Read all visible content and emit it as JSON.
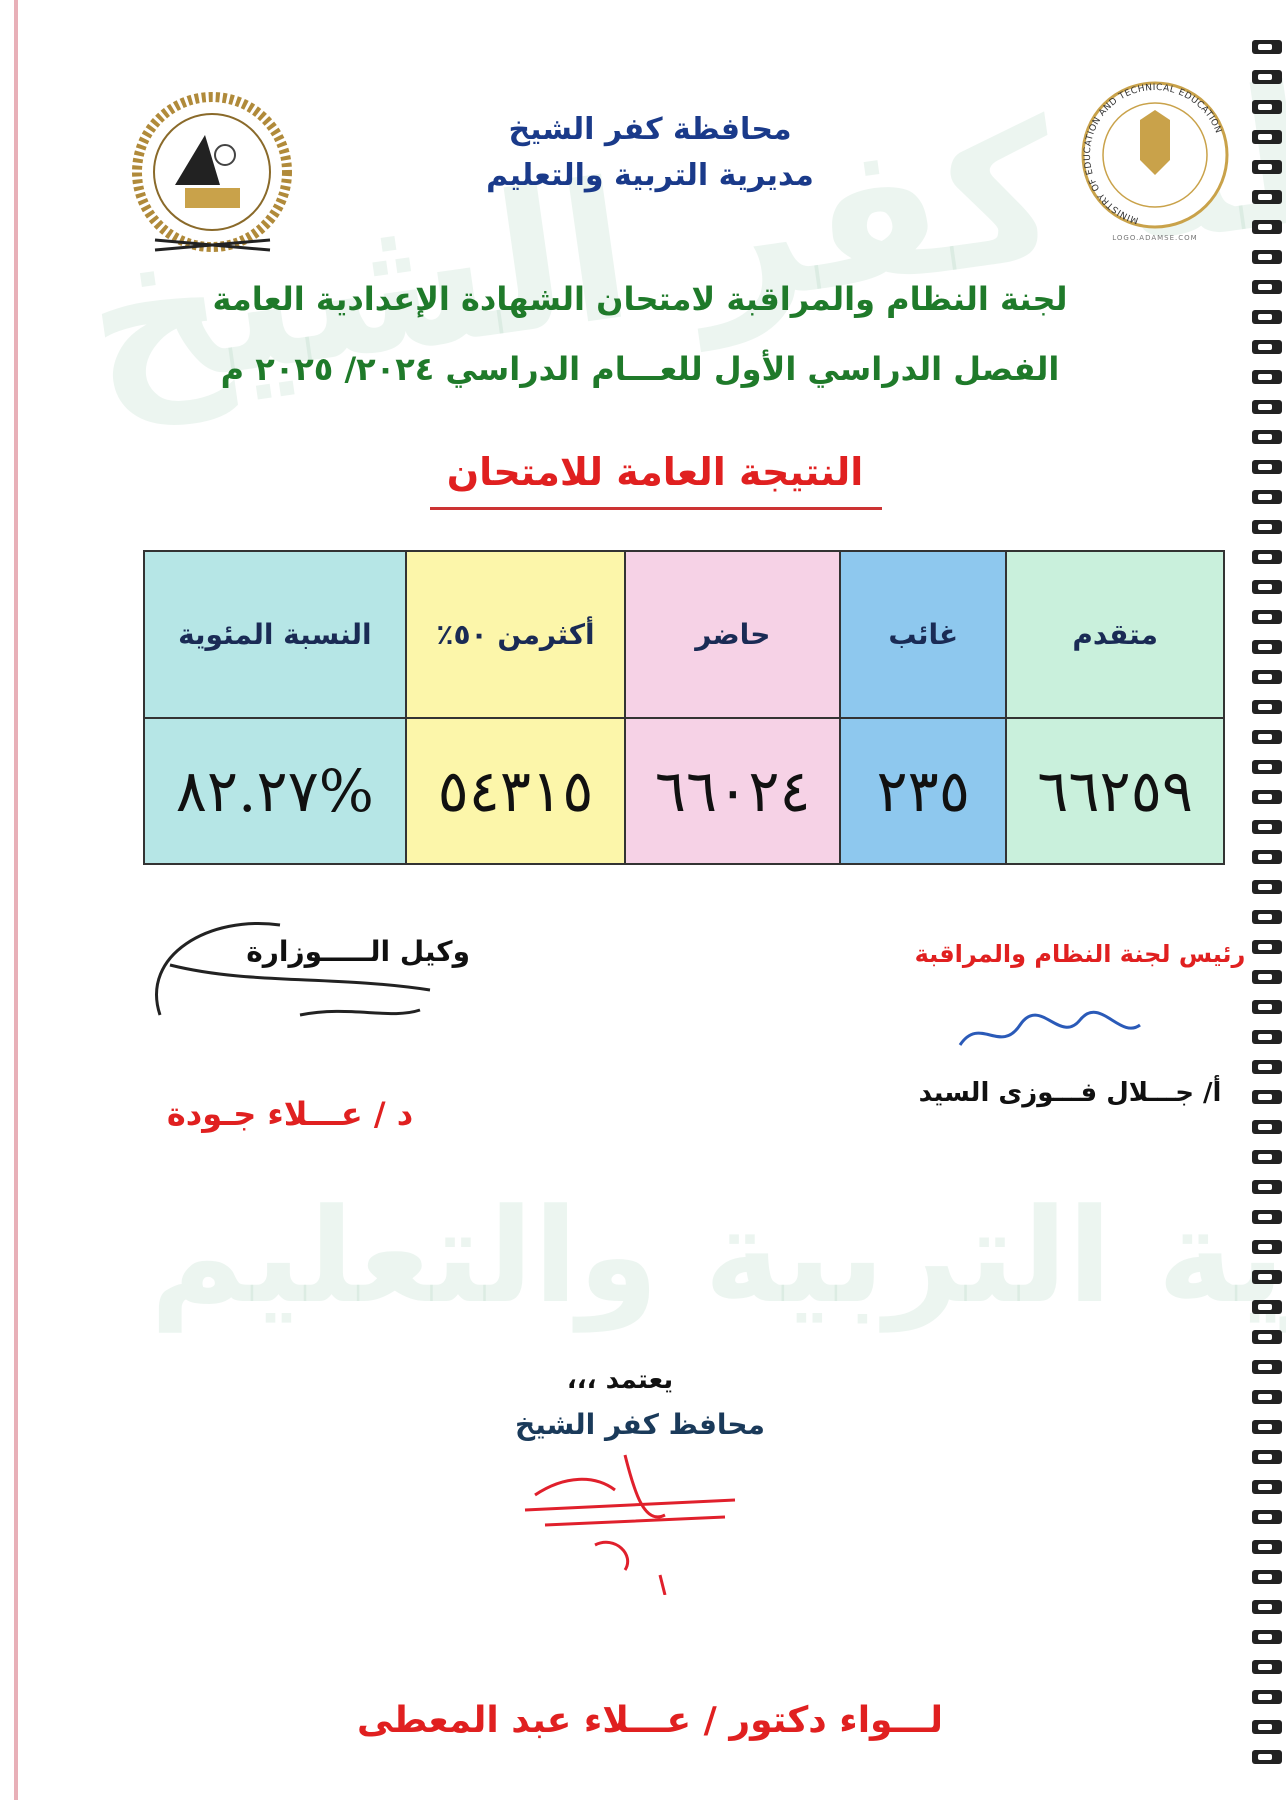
{
  "header": {
    "governorate": "محافظة كفر الشيخ",
    "directorate": "مديرية التربية والتعليم",
    "committee": "لجنة النظام والمراقبة لامتحان الشهادة الإعدادية العامة",
    "term": "الفصل الدراسي الأول للعـــام الدراسي  ٢٠٢٤/  ٢٠٢٥ م",
    "result_title": "النتيجة العامة للامتحان"
  },
  "logos": {
    "left": {
      "text_top": "محافظة كفر الشيخ",
      "text_bottom": "مديرية التربية والتعليم"
    },
    "right": {
      "text": "MINISTRY OF EDUCATION AND TECHNICAL EDUCATION",
      "caption": "LOGO.ADAMSE.COM"
    }
  },
  "table": {
    "columns": [
      {
        "label": "متقدم",
        "value": "٦٦٢٥٩",
        "color": "#c9f0dc"
      },
      {
        "label": "غائب",
        "value": "٢٣٥",
        "color": "#8ec8ee"
      },
      {
        "label": "حاضر",
        "value": "٦٦٠٢٤",
        "color": "#f6d2e6"
      },
      {
        "label": "أكثرمن ٥٠٪",
        "value": "٥٤٣١٥",
        "color": "#fcf6aa"
      },
      {
        "label": "النسبة المئوية",
        "value": "٨٢.٢٧%",
        "color": "#b6e6e6"
      }
    ]
  },
  "signatures": {
    "right_title": "رئيس لجنة النظام والمراقبة",
    "right_name": "أ/ جـــلال فـــوزى السيد",
    "left_title": "وكيل الـــــوزارة",
    "left_name": "د / عـــلاء جـودة",
    "approve": "يعتمد ،،،",
    "governor_title": "محافظ كفر الشيخ",
    "governor_name": "لـــواء دكتور / عـــلاء عبد المعطى"
  },
  "watermark": {
    "top": "محافظة كفر الشيخ",
    "bottom": "مديرية التربية والتعليم"
  }
}
